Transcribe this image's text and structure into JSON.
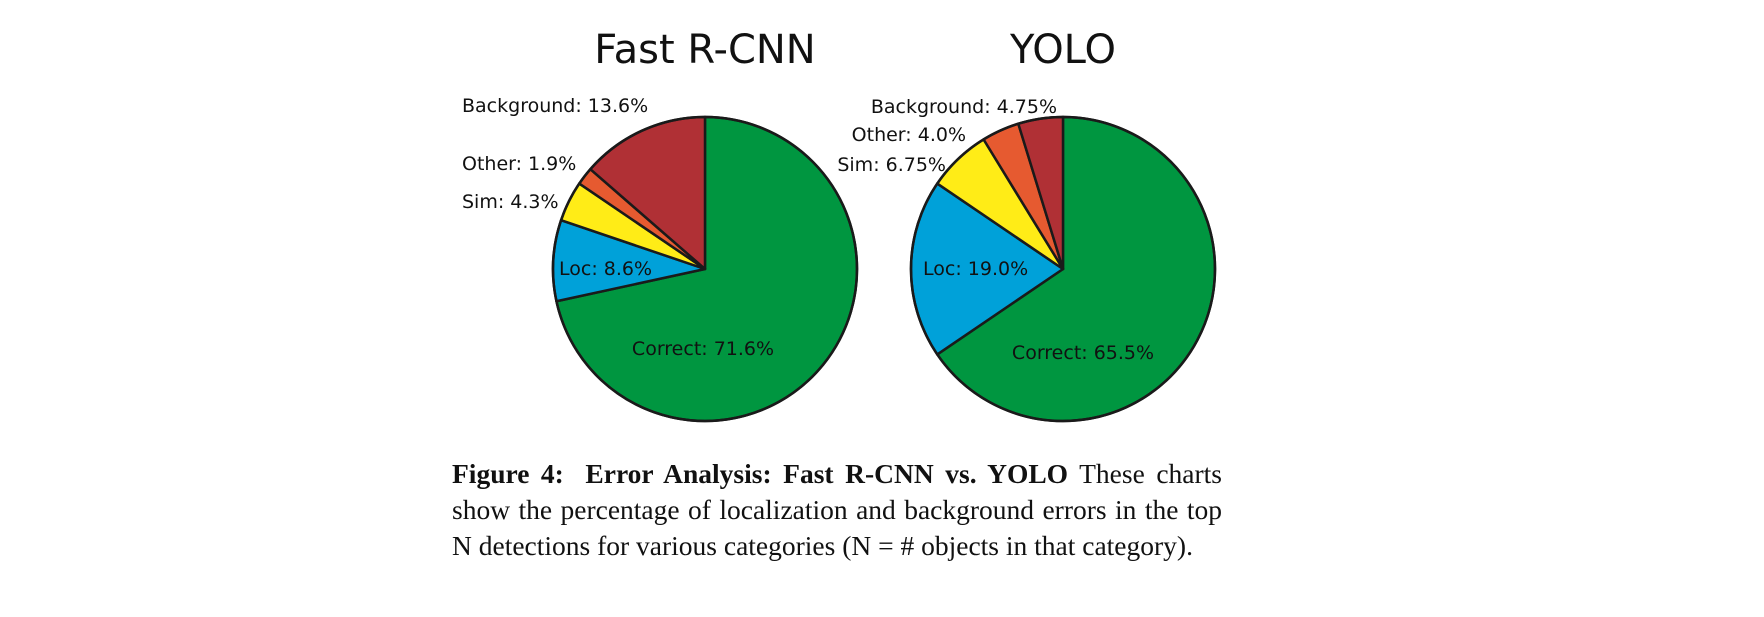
{
  "chart_data": [
    {
      "type": "pie",
      "title": "Fast R-CNN",
      "slices": [
        {
          "name": "Correct",
          "value": 71.6,
          "label": "Correct: 71.6%",
          "color": "#009640"
        },
        {
          "name": "Loc",
          "value": 8.6,
          "label": "Loc: 8.6%",
          "color": "#00A1D9"
        },
        {
          "name": "Sim",
          "value": 4.3,
          "label": "Sim: 4.3%",
          "color": "#FFEC17"
        },
        {
          "name": "Other",
          "value": 1.9,
          "label": "Other: 1.9%",
          "color": "#E65A30"
        },
        {
          "name": "Background",
          "value": 13.6,
          "label": "Background: 13.6%",
          "color": "#B03035"
        }
      ]
    },
    {
      "type": "pie",
      "title": "YOLO",
      "slices": [
        {
          "name": "Correct",
          "value": 65.5,
          "label": "Correct: 65.5%",
          "color": "#009640"
        },
        {
          "name": "Loc",
          "value": 19.0,
          "label": "Loc: 19.0%",
          "color": "#00A1D9"
        },
        {
          "name": "Sim",
          "value": 6.75,
          "label": "Sim: 6.75%",
          "color": "#FFEC17"
        },
        {
          "name": "Other",
          "value": 4.0,
          "label": "Other: 4.0%",
          "color": "#E65A30"
        },
        {
          "name": "Background",
          "value": 4.75,
          "label": "Background: 4.75%",
          "color": "#B03035"
        }
      ]
    }
  ],
  "caption": {
    "figure_label": "Figure 4:",
    "heading": "Error Analysis: Fast R-CNN vs. YOLO",
    "body": "These charts show the percentage of localization and background errors in the top N detections for various categories (N = # objects in that category)."
  }
}
